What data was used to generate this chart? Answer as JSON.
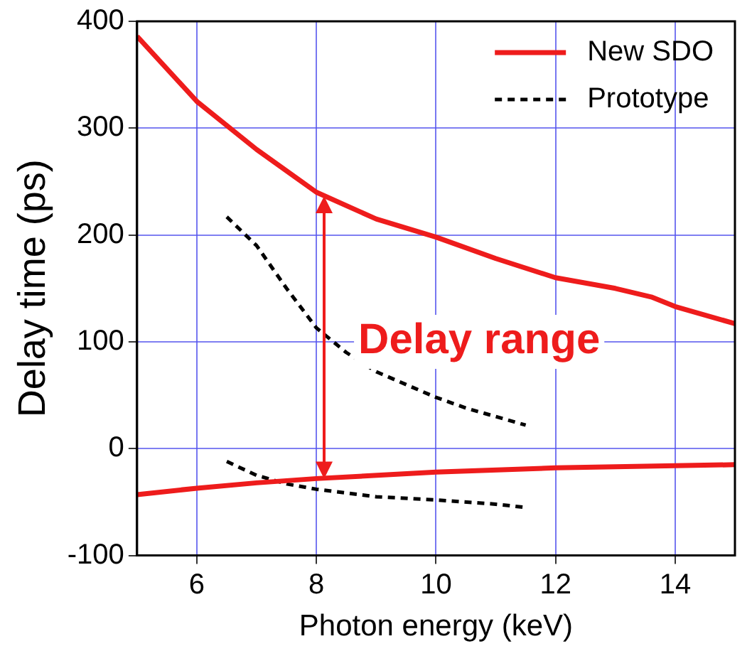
{
  "chart_data": {
    "type": "line",
    "xlabel": "Photon energy (keV)",
    "ylabel": "Delay time (ps)",
    "xlim": [
      5,
      15
    ],
    "xticks": [
      6,
      8,
      10,
      12,
      14
    ],
    "ylim": [
      -100,
      400
    ],
    "yticks": [
      -100,
      0,
      100,
      200,
      300,
      400
    ],
    "grid": true,
    "legend": "top right",
    "marker": "none",
    "annotations": [
      "Delay range"
    ],
    "series": [
      {
        "name": "New SDO",
        "color": "#ee1c1c",
        "line_style": "solid",
        "x": [
          5,
          6,
          7,
          8,
          9,
          10,
          11,
          12,
          13,
          13.6,
          14,
          15
        ],
        "values": [
          386,
          325,
          280,
          240,
          215,
          198,
          178,
          160,
          150,
          142,
          133,
          117
        ]
      },
      {
        "color": "#ee1c1c",
        "line_style": "solid",
        "x": [
          5,
          6,
          7,
          8,
          10,
          12,
          14,
          15
        ],
        "values": [
          -43,
          -37,
          -32,
          -28,
          -22,
          -18,
          -16,
          -15
        ]
      },
      {
        "name": "Prototype",
        "color": "#000000",
        "line_style": "dashed",
        "x": [
          6.5,
          7,
          7.5,
          8,
          8.5,
          9,
          9.5,
          10,
          10.5,
          11.5
        ],
        "values": [
          217,
          190,
          150,
          113,
          90,
          72,
          60,
          48,
          38,
          22
        ]
      },
      {
        "color": "#000000",
        "line_style": "dashed",
        "x": [
          6.5,
          7,
          7.5,
          8,
          9,
          10,
          11,
          11.5
        ],
        "values": [
          -12,
          -25,
          -33,
          -38,
          -45,
          -48,
          -52,
          -55
        ]
      }
    ]
  }
}
